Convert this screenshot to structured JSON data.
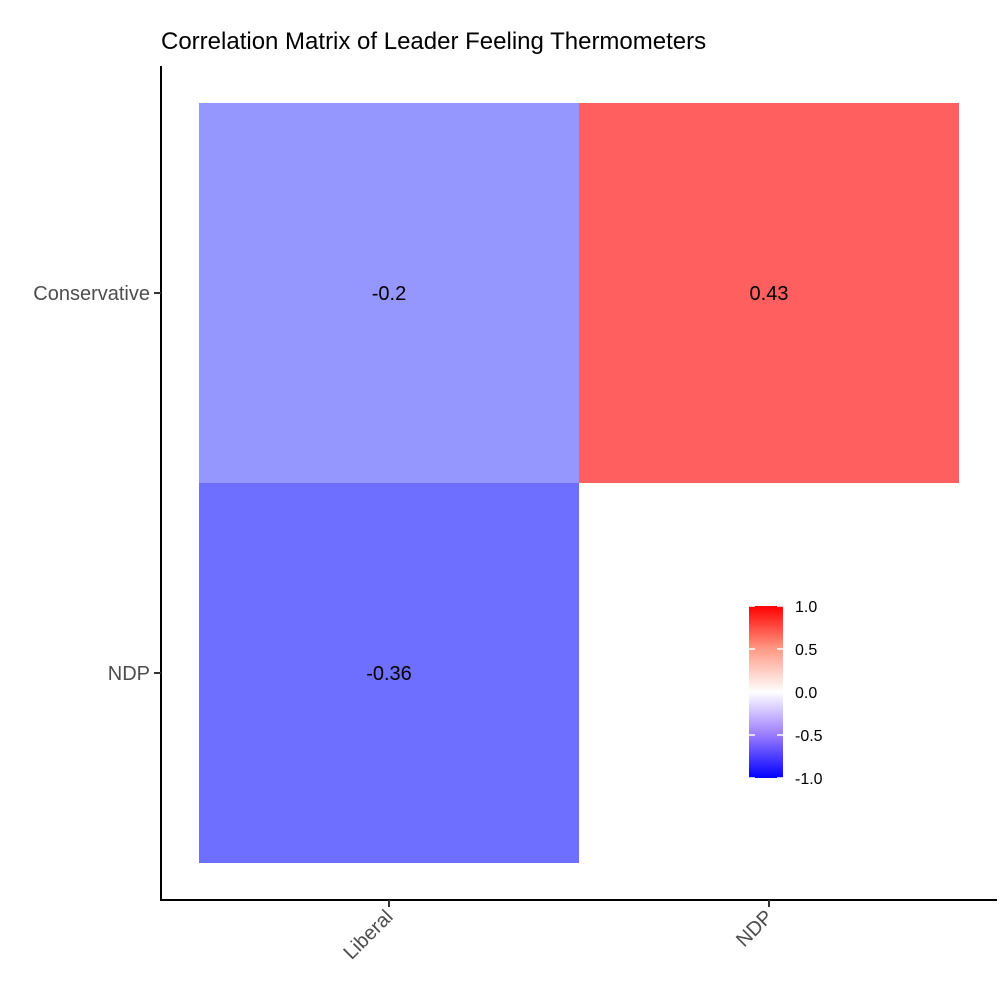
{
  "chart_data": {
    "type": "heatmap",
    "title": "Correlation Matrix of Leader Feeling Thermometers",
    "x_categories": [
      "Liberal",
      "NDP"
    ],
    "y_categories": [
      "Conservative",
      "NDP"
    ],
    "cells": [
      {
        "x": "Liberal",
        "y": "Conservative",
        "value": -0.2,
        "label": "-0.2"
      },
      {
        "x": "NDP",
        "y": "Conservative",
        "value": 0.43,
        "label": "0.43"
      },
      {
        "x": "Liberal",
        "y": "NDP",
        "value": -0.36,
        "label": "-0.36"
      }
    ],
    "color_scale": {
      "low": "#0000ff",
      "mid": "#ffffff",
      "high": "#ff0000",
      "limits": [
        -1.0,
        1.0
      ],
      "breaks": [
        1.0,
        0.5,
        0.0,
        -0.5,
        -1.0
      ],
      "break_labels": [
        "1.0",
        "0.5",
        "0.0",
        "-0.5",
        "-1.0"
      ]
    },
    "legend_position": "inside-bottom-right",
    "grid": false
  }
}
